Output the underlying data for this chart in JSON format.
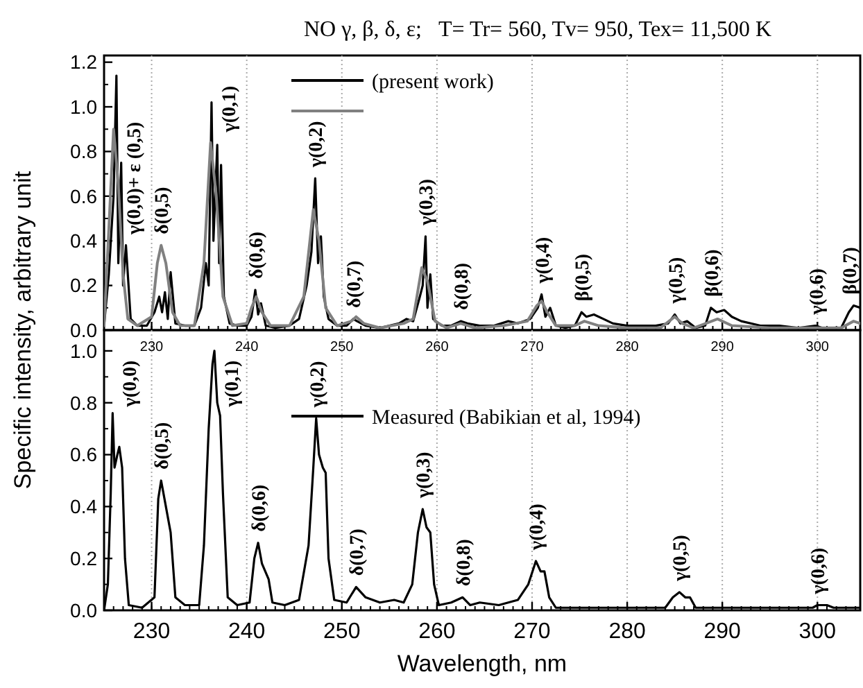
{
  "chart_data": [
    {
      "type": "line",
      "title": "NO γ, β, δ, ε;   T= Tr= 560, Tv= 950, Tex= 11,500 K",
      "ylabel": "Specific intensity, arbitrary unit",
      "xlim": [
        225,
        304.5
      ],
      "xticks": [
        230,
        240,
        250,
        260,
        270,
        280,
        290,
        300
      ],
      "ylim": [
        0,
        1.23
      ],
      "yticks": [
        {
          "value": 0,
          "label": "0.0"
        },
        {
          "value": 0.2,
          "label": "0.2"
        },
        {
          "value": 0.4,
          "label": "0.4"
        },
        {
          "value": 0.6,
          "label": "0.6"
        },
        {
          "value": 0.8,
          "label": "0.8"
        },
        {
          "value": 1,
          "label": "1.0"
        },
        {
          "value": 1.2,
          "label": "1.2"
        }
      ],
      "grid": "x",
      "legend": "top",
      "line_style": "solid",
      "marker": "none",
      "series": [
        {
          "name": "(present work)",
          "color": "#000000",
          "x": [
            225,
            225.5,
            226,
            226.3,
            226.5,
            226.8,
            227,
            227.3,
            227.8,
            228.5,
            229.5,
            230.3,
            230.8,
            231.1,
            231.4,
            231.7,
            232,
            232.5,
            233.5,
            234.5,
            235.2,
            235.7,
            236,
            236.3,
            236.5,
            236.9,
            237.1,
            237.3,
            237.6,
            238.2,
            239,
            240,
            240.5,
            240.9,
            241.2,
            241.5,
            242,
            243,
            244.5,
            245.5,
            246.3,
            246.8,
            247.2,
            247.5,
            247.8,
            248.1,
            248.6,
            249.5,
            250.5,
            251.2,
            251.6,
            252.5,
            254,
            256,
            256.8,
            257.5,
            258.2,
            258.5,
            258.8,
            259,
            259.3,
            259.6,
            260.5,
            261.5,
            262.5,
            263.2,
            264.5,
            266,
            267.5,
            268.5,
            269.8,
            270.6,
            271,
            271.4,
            271.9,
            272.5,
            273.5,
            274.5,
            275.2,
            275.7,
            276.5,
            277.5,
            278.5,
            280,
            281.5,
            283,
            284.3,
            285,
            285.6,
            286.3,
            287.2,
            288.2,
            288.8,
            289.4,
            290.2,
            291,
            292,
            294,
            296,
            298,
            299.8,
            300.5,
            301.5,
            302.5,
            303.3,
            303.8,
            304.5
          ],
          "values": [
            0.02,
            0.25,
            0.6,
            1.14,
            0.3,
            0.75,
            0.2,
            0.38,
            0.05,
            0.02,
            0.02,
            0.08,
            0.15,
            0.08,
            0.17,
            0.05,
            0.26,
            0.03,
            0.02,
            0.02,
            0.1,
            0.3,
            0.2,
            1.02,
            0.4,
            0.83,
            0.3,
            0.74,
            0.15,
            0.03,
            0.02,
            0.02,
            0.06,
            0.18,
            0.07,
            0.12,
            0.02,
            0.01,
            0.02,
            0.05,
            0.2,
            0.35,
            0.68,
            0.3,
            0.42,
            0.15,
            0.05,
            0.02,
            0.02,
            0.05,
            0.04,
            0.02,
            0.01,
            0.03,
            0.05,
            0.04,
            0.15,
            0.2,
            0.42,
            0.1,
            0.25,
            0.05,
            0.02,
            0.02,
            0.04,
            0.03,
            0.02,
            0.02,
            0.04,
            0.03,
            0.05,
            0.1,
            0.16,
            0.06,
            0.1,
            0.02,
            0.01,
            0.02,
            0.08,
            0.06,
            0.07,
            0.05,
            0.03,
            0.02,
            0.02,
            0.02,
            0.03,
            0.07,
            0.03,
            0.04,
            0.01,
            0.02,
            0.1,
            0.08,
            0.09,
            0.06,
            0.04,
            0.02,
            0.02,
            0.01,
            0.02,
            0.01,
            0.01,
            0.01,
            0.08,
            0.11,
            0.1
          ]
        },
        {
          "color": "#808080",
          "x": [
            225,
            225.5,
            226,
            226.5,
            227,
            227.5,
            228.5,
            230,
            230.6,
            231,
            231.5,
            232.2,
            233,
            234.5,
            235.5,
            236.2,
            236.8,
            237.5,
            238.5,
            240,
            240.5,
            241,
            241.6,
            242.5,
            244.5,
            246,
            247,
            247.6,
            248.3,
            249.5,
            251,
            251.5,
            252.3,
            254,
            256.5,
            257.5,
            258.4,
            259,
            259.8,
            261,
            262.5,
            264,
            267,
            269.5,
            270.5,
            271,
            271.6,
            272.5,
            274.5,
            275.5,
            277,
            280,
            283.5,
            285,
            285.8,
            287,
            289.5,
            291,
            295,
            300,
            302.5,
            303.8,
            304.5
          ],
          "values": [
            0.02,
            0.45,
            0.9,
            0.65,
            0.25,
            0.05,
            0.02,
            0.06,
            0.3,
            0.38,
            0.3,
            0.08,
            0.02,
            0.02,
            0.3,
            0.84,
            0.6,
            0.15,
            0.02,
            0.03,
            0.1,
            0.15,
            0.08,
            0.02,
            0.02,
            0.15,
            0.54,
            0.4,
            0.1,
            0.02,
            0.04,
            0.06,
            0.03,
            0.01,
            0.03,
            0.05,
            0.28,
            0.22,
            0.04,
            0.01,
            0.03,
            0.01,
            0.02,
            0.04,
            0.11,
            0.13,
            0.08,
            0.02,
            0.02,
            0.04,
            0.02,
            0.01,
            0.01,
            0.06,
            0.03,
            0.01,
            0.05,
            0.02,
            0.01,
            0.01,
            0.01,
            0.04,
            0.03
          ]
        }
      ],
      "annotations": [
        {
          "text": "γ(0,0)+ ε (0,5)",
          "x": 226.3,
          "y": 1.14
        },
        {
          "text": "δ(0,5)",
          "x": 231,
          "y": 0.38
        },
        {
          "text": "γ(0,1)",
          "x": 236.3,
          "y": 1.02
        },
        {
          "text": "δ(0,6)",
          "x": 240.9,
          "y": 0.18
        },
        {
          "text": "γ(0,2)",
          "x": 247.2,
          "y": 0.68
        },
        {
          "text": "δ(0,7)",
          "x": 251.2,
          "y": 0.05
        },
        {
          "text": "γ(0,3)",
          "x": 258.8,
          "y": 0.42
        },
        {
          "text": "δ(0,8)",
          "x": 262.5,
          "y": 0.04
        },
        {
          "text": "γ(0,4)",
          "x": 271,
          "y": 0.16
        },
        {
          "text": "β(0,5)",
          "x": 275.2,
          "y": 0.08
        },
        {
          "text": "γ(0,5)",
          "x": 285,
          "y": 0.07
        },
        {
          "text": "β(0,6)",
          "x": 288.8,
          "y": 0.1
        },
        {
          "text": "γ(0,6)",
          "x": 299.8,
          "y": 0.02
        },
        {
          "text": "β(0,7)",
          "x": 303.8,
          "y": 0.11
        }
      ]
    },
    {
      "type": "line",
      "xlabel": "Wavelength, nm",
      "xlim": [
        225,
        304.5
      ],
      "xticks": [
        230,
        240,
        250,
        260,
        270,
        280,
        290,
        300
      ],
      "ylim": [
        0,
        1.08
      ],
      "yticks": [
        {
          "value": 0,
          "label": "0.0"
        },
        {
          "value": 0.2,
          "label": "0.2"
        },
        {
          "value": 0.4,
          "label": "0.4"
        },
        {
          "value": 0.6,
          "label": "0.6"
        },
        {
          "value": 0.8,
          "label": "0.8"
        },
        {
          "value": 1,
          "label": "1.0"
        }
      ],
      "grid": "x",
      "legend": "right",
      "line_style": "solid",
      "marker": "none",
      "series": [
        {
          "name": "Measured (Babikian et al, 1994)",
          "color": "#000000",
          "x": [
            225,
            225.4,
            225.7,
            225.9,
            226.1,
            226.4,
            226.6,
            226.9,
            227.2,
            227.6,
            229,
            230.3,
            230.7,
            231,
            231.4,
            232,
            232.5,
            233.5,
            235,
            235.5,
            236,
            236.4,
            236.6,
            236.9,
            237.2,
            237.5,
            238,
            239,
            240.3,
            240.8,
            241.2,
            241.6,
            242.3,
            242.7,
            244,
            245.5,
            246.5,
            247,
            247.3,
            247.6,
            248,
            248.3,
            248.6,
            249.2,
            250.5,
            251.5,
            252.5,
            254,
            255.5,
            256.5,
            257.4,
            258,
            258.5,
            258.9,
            259.3,
            259.7,
            260.2,
            261.5,
            262.7,
            263.5,
            264.5,
            266.5,
            268.5,
            269.6,
            270.4,
            270.9,
            271.3,
            271.8,
            272.5,
            275,
            280,
            284,
            284.8,
            285.5,
            286.1,
            286.6,
            287.2,
            290,
            295,
            299.5,
            300,
            301,
            301.7,
            304.5
          ],
          "values": [
            0,
            0.1,
            0.45,
            0.76,
            0.55,
            0.6,
            0.63,
            0.55,
            0.2,
            0.02,
            0.01,
            0.05,
            0.43,
            0.5,
            0.42,
            0.3,
            0.05,
            0.02,
            0.02,
            0.25,
            0.7,
            0.95,
            1,
            0.8,
            0.75,
            0.45,
            0.05,
            0.02,
            0.03,
            0.2,
            0.26,
            0.18,
            0.12,
            0.03,
            0.02,
            0.04,
            0.25,
            0.55,
            0.74,
            0.6,
            0.55,
            0.53,
            0.2,
            0.04,
            0.03,
            0.09,
            0.05,
            0.03,
            0.04,
            0.03,
            0.1,
            0.3,
            0.39,
            0.32,
            0.3,
            0.1,
            0.02,
            0.03,
            0.05,
            0.02,
            0.03,
            0.02,
            0.04,
            0.1,
            0.19,
            0.15,
            0.15,
            0.05,
            0.01,
            0.01,
            0.01,
            0.01,
            0.05,
            0.07,
            0.05,
            0.05,
            0.01,
            0.01,
            0.01,
            0.01,
            0.02,
            0.02,
            0.01,
            0.01
          ]
        }
      ],
      "annotations": [
        {
          "text": "γ(0,0)",
          "x": 225.9,
          "y": 0.76
        },
        {
          "text": "δ(0,5)",
          "x": 231,
          "y": 0.5
        },
        {
          "text": "γ(0,1)",
          "x": 236.6,
          "y": 1
        },
        {
          "text": "δ(0,6)",
          "x": 241.2,
          "y": 0.26
        },
        {
          "text": "γ(0,2)",
          "x": 247.3,
          "y": 0.74
        },
        {
          "text": "δ(0,7)",
          "x": 251.5,
          "y": 0.09
        },
        {
          "text": "γ(0,3)",
          "x": 258.5,
          "y": 0.39
        },
        {
          "text": "δ(0,8)",
          "x": 262.7,
          "y": 0.05
        },
        {
          "text": "γ(0,4)",
          "x": 270.4,
          "y": 0.19
        },
        {
          "text": "γ(0,5)",
          "x": 285.5,
          "y": 0.07
        },
        {
          "text": "γ(0,6)",
          "x": 300,
          "y": 0.02
        }
      ]
    }
  ]
}
